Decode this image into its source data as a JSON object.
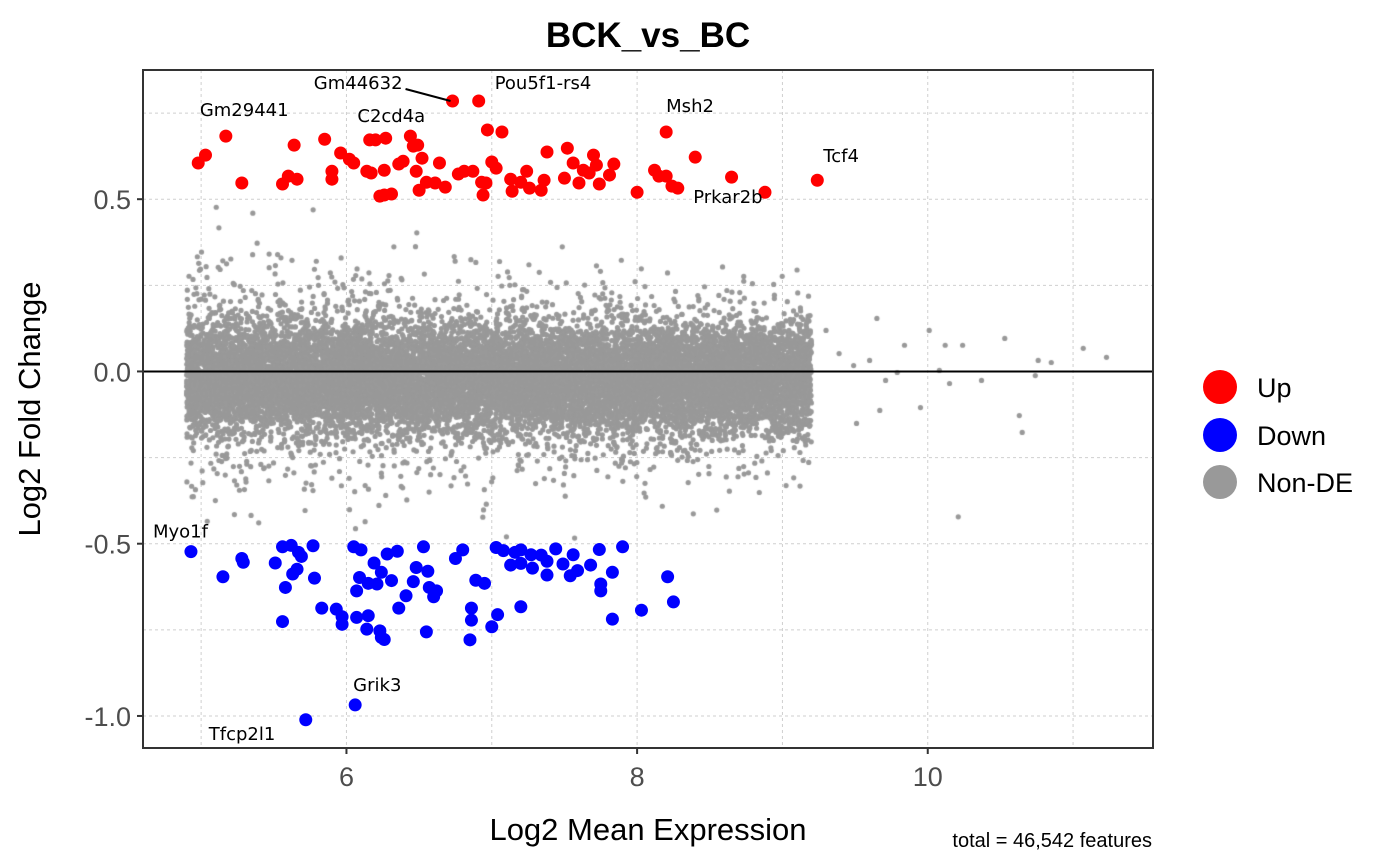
{
  "chart_data": {
    "type": "scatter",
    "title": "BCK_vs_BC",
    "xlabel": "Log2 Mean Expression",
    "ylabel": "Log2 Fold Change",
    "caption": "total = 46,542 features",
    "xlim": [
      4.6,
      11.55
    ],
    "ylim": [
      -1.093,
      0.875
    ],
    "xticks": [
      6,
      8,
      10
    ],
    "xtick_labels": [
      "6",
      "8",
      "10"
    ],
    "yticks": [
      -1.0,
      -0.5,
      0.0,
      0.5
    ],
    "ytick_labels": [
      "-1.0",
      "-0.5",
      "0.0",
      "0.5"
    ],
    "minor_xticks": [
      5,
      7,
      9,
      11
    ],
    "minor_yticks": [
      -0.75,
      -0.25,
      0.25,
      0.75
    ],
    "grid": true,
    "hline": 0,
    "legend": {
      "position": "right",
      "entries": [
        {
          "name": "Up",
          "color": "#ff0000"
        },
        {
          "name": "Down",
          "color": "#0000ff"
        },
        {
          "name": "Non-DE",
          "color": "#999999"
        }
      ]
    },
    "series": {
      "up": [
        [
          4.98,
          0.605
        ],
        [
          5.03,
          0.628
        ],
        [
          5.17,
          0.683
        ],
        [
          5.28,
          0.547
        ],
        [
          5.64,
          0.657
        ],
        [
          5.56,
          0.544
        ],
        [
          5.6,
          0.567
        ],
        [
          5.66,
          0.558
        ],
        [
          5.85,
          0.674
        ],
        [
          5.9,
          0.581
        ],
        [
          5.9,
          0.558
        ],
        [
          5.96,
          0.634
        ],
        [
          6.02,
          0.616
        ],
        [
          6.05,
          0.605
        ],
        [
          6.16,
          0.672
        ],
        [
          6.2,
          0.672
        ],
        [
          6.27,
          0.677
        ],
        [
          6.14,
          0.581
        ],
        [
          6.17,
          0.576
        ],
        [
          6.23,
          0.509
        ],
        [
          6.26,
          0.512
        ],
        [
          6.31,
          0.515
        ],
        [
          6.26,
          0.584
        ],
        [
          6.36,
          0.602
        ],
        [
          6.39,
          0.61
        ],
        [
          6.44,
          0.683
        ],
        [
          6.46,
          0.654
        ],
        [
          6.49,
          0.657
        ],
        [
          6.52,
          0.619
        ],
        [
          6.48,
          0.581
        ],
        [
          6.55,
          0.549
        ],
        [
          6.5,
          0.526
        ],
        [
          6.64,
          0.605
        ],
        [
          6.61,
          0.547
        ],
        [
          6.68,
          0.535
        ],
        [
          6.73,
          0.785
        ],
        [
          6.91,
          0.785
        ],
        [
          6.77,
          0.573
        ],
        [
          6.81,
          0.581
        ],
        [
          6.87,
          0.581
        ],
        [
          6.94,
          0.512
        ],
        [
          6.97,
          0.701
        ],
        [
          7.07,
          0.695
        ],
        [
          7.0,
          0.608
        ],
        [
          7.03,
          0.59
        ],
        [
          6.96,
          0.547
        ],
        [
          7.13,
          0.558
        ],
        [
          7.2,
          0.549
        ],
        [
          7.24,
          0.581
        ],
        [
          7.26,
          0.532
        ],
        [
          7.36,
          0.555
        ],
        [
          7.38,
          0.637
        ],
        [
          7.52,
          0.648
        ],
        [
          7.56,
          0.605
        ],
        [
          7.6,
          0.547
        ],
        [
          7.7,
          0.628
        ],
        [
          7.67,
          0.576
        ],
        [
          7.74,
          0.544
        ],
        [
          7.84,
          0.602
        ],
        [
          7.63,
          0.584
        ],
        [
          8.0,
          0.52
        ],
        [
          8.12,
          0.584
        ],
        [
          8.2,
          0.695
        ],
        [
          8.2,
          0.567
        ],
        [
          8.24,
          0.538
        ],
        [
          8.28,
          0.532
        ],
        [
          8.4,
          0.622
        ],
        [
          8.65,
          0.564
        ],
        [
          8.88,
          0.52
        ],
        [
          9.24,
          0.555
        ],
        [
          7.34,
          0.526
        ],
        [
          7.14,
          0.523
        ],
        [
          6.93,
          0.549
        ],
        [
          7.72,
          0.599
        ],
        [
          7.5,
          0.561
        ],
        [
          8.15,
          0.567
        ],
        [
          7.81,
          0.57
        ]
      ],
      "down": [
        [
          4.93,
          -0.523
        ],
        [
          5.15,
          -0.596
        ],
        [
          5.28,
          -0.543
        ],
        [
          5.29,
          -0.554
        ],
        [
          5.51,
          -0.556
        ],
        [
          5.56,
          -0.509
        ],
        [
          5.62,
          -0.505
        ],
        [
          5.67,
          -0.525
        ],
        [
          5.69,
          -0.537
        ],
        [
          5.77,
          -0.506
        ],
        [
          5.66,
          -0.574
        ],
        [
          5.63,
          -0.588
        ],
        [
          5.58,
          -0.627
        ],
        [
          5.78,
          -0.6
        ],
        [
          5.56,
          -0.726
        ],
        [
          5.83,
          -0.687
        ],
        [
          5.93,
          -0.69
        ],
        [
          5.97,
          -0.712
        ],
        [
          5.97,
          -0.734
        ],
        [
          6.05,
          -0.509
        ],
        [
          6.1,
          -0.518
        ],
        [
          6.19,
          -0.556
        ],
        [
          6.24,
          -0.583
        ],
        [
          6.09,
          -0.598
        ],
        [
          6.07,
          -0.637
        ],
        [
          6.15,
          -0.615
        ],
        [
          6.21,
          -0.617
        ],
        [
          6.31,
          -0.607
        ],
        [
          6.28,
          -0.53
        ],
        [
          6.35,
          -0.522
        ],
        [
          6.53,
          -0.509
        ],
        [
          6.48,
          -0.569
        ],
        [
          6.56,
          -0.58
        ],
        [
          6.46,
          -0.61
        ],
        [
          6.41,
          -0.651
        ],
        [
          6.36,
          -0.687
        ],
        [
          6.57,
          -0.627
        ],
        [
          6.62,
          -0.637
        ],
        [
          6.6,
          -0.654
        ],
        [
          6.07,
          -0.714
        ],
        [
          6.15,
          -0.709
        ],
        [
          6.14,
          -0.748
        ],
        [
          6.23,
          -0.753
        ],
        [
          6.24,
          -0.772
        ],
        [
          6.26,
          -0.778
        ],
        [
          6.55,
          -0.756
        ],
        [
          6.75,
          -0.543
        ],
        [
          6.8,
          -0.518
        ],
        [
          6.89,
          -0.606
        ],
        [
          6.95,
          -0.615
        ],
        [
          6.86,
          -0.687
        ],
        [
          6.86,
          -0.722
        ],
        [
          6.85,
          -0.779
        ],
        [
          7.04,
          -0.706
        ],
        [
          7.0,
          -0.741
        ],
        [
          7.2,
          -0.683
        ],
        [
          7.03,
          -0.511
        ],
        [
          7.08,
          -0.52
        ],
        [
          7.16,
          -0.525
        ],
        [
          7.2,
          -0.518
        ],
        [
          7.27,
          -0.532
        ],
        [
          7.34,
          -0.533
        ],
        [
          7.38,
          -0.551
        ],
        [
          7.13,
          -0.562
        ],
        [
          7.2,
          -0.557
        ],
        [
          7.28,
          -0.571
        ],
        [
          7.38,
          -0.591
        ],
        [
          7.44,
          -0.515
        ],
        [
          7.49,
          -0.559
        ],
        [
          7.56,
          -0.532
        ],
        [
          7.54,
          -0.593
        ],
        [
          7.59,
          -0.578
        ],
        [
          7.68,
          -0.562
        ],
        [
          7.74,
          -0.517
        ],
        [
          7.75,
          -0.617
        ],
        [
          7.75,
          -0.637
        ],
        [
          7.83,
          -0.583
        ],
        [
          7.9,
          -0.509
        ],
        [
          7.83,
          -0.719
        ],
        [
          8.03,
          -0.693
        ],
        [
          8.21,
          -0.596
        ],
        [
          8.25,
          -0.669
        ],
        [
          6.06,
          -0.968
        ],
        [
          5.72,
          -1.011
        ]
      ],
      "non_de": {
        "count": 46380,
        "x_range": [
          4.9,
          9.2
        ],
        "core_sd": 0.075,
        "tail_sd": 0.17,
        "y_cap": 0.5,
        "sparse_high_x": [
          [
            9.3,
            0.119
          ],
          [
            9.39,
            0.052
          ],
          [
            9.49,
            0.017
          ],
          [
            9.65,
            0.154
          ],
          [
            9.71,
            -0.026
          ],
          [
            9.51,
            -0.151
          ],
          [
            9.84,
            0.076
          ],
          [
            10.01,
            0.119
          ],
          [
            9.95,
            -0.105
          ],
          [
            10.12,
            0.076
          ],
          [
            10.24,
            0.076
          ],
          [
            10.37,
            -0.026
          ],
          [
            10.53,
            0.096
          ],
          [
            10.63,
            -0.128
          ],
          [
            10.65,
            -0.177
          ],
          [
            10.76,
            0.032
          ],
          [
            10.85,
            0.026
          ],
          [
            11.07,
            0.067
          ],
          [
            11.23,
            0.041
          ],
          [
            10.21,
            -0.422
          ],
          [
            9.67,
            -0.113
          ],
          [
            9.6,
            0.032
          ],
          [
            10.08,
            0.003
          ],
          [
            9.79,
            -0.003
          ],
          [
            10.15,
            -0.035
          ],
          [
            10.74,
            -0.012
          ]
        ]
      }
    },
    "labels": [
      {
        "gene": "Gm44632",
        "x": 6.73,
        "y": 0.785
      },
      {
        "gene": "Pou5f1-rs4",
        "x": 6.91,
        "y": 0.785
      },
      {
        "gene": "Gm29441",
        "x": 5.17,
        "y": 0.683
      },
      {
        "gene": "C2cd4a",
        "x": 6.44,
        "y": 0.683
      },
      {
        "gene": "Msh2",
        "x": 8.2,
        "y": 0.695
      },
      {
        "gene": "Tcf4",
        "x": 9.24,
        "y": 0.555
      },
      {
        "gene": "Prkar2b",
        "x": 8.4,
        "y": 0.622
      },
      {
        "gene": "Myo1f",
        "x": 4.93,
        "y": -0.523
      },
      {
        "gene": "Grik3",
        "x": 6.06,
        "y": -0.968
      },
      {
        "gene": "Tfcp2l1",
        "x": 5.72,
        "y": -1.011
      }
    ]
  }
}
